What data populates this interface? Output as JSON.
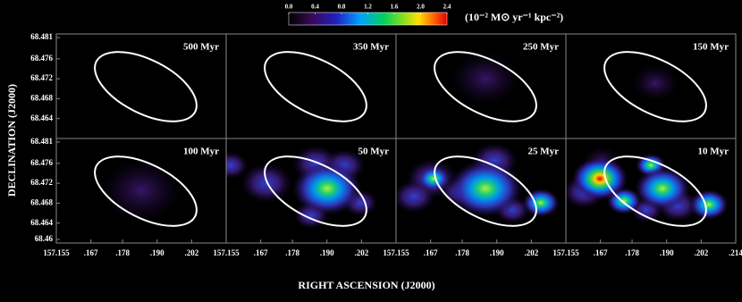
{
  "chart_data": {
    "type": "heatmap",
    "xlabel": "RIGHT ASCENSION (J2000)",
    "ylabel": "DECLINATION (J2000)",
    "colorbar": {
      "label": "(10⁻² M⊙  yr⁻¹ kpc⁻²)",
      "clim": [
        0,
        2.4
      ],
      "ticks": [
        {
          "value": 0,
          "label": "0.0"
        },
        0.4,
        0.8,
        1.2,
        1.6,
        {
          "value": 2,
          "label": "2.0"
        },
        2.4
      ]
    },
    "xlim": [
      157.155,
      157.214
    ],
    "ylim": [
      68.46,
      68.481
    ],
    "panels": [
      {
        "label": "500 Myr"
      },
      {
        "label": "350 Myr"
      },
      {
        "label": "250 Myr"
      },
      {
        "label": "150 Myr"
      },
      {
        "label": "100 Myr"
      },
      {
        "label": "50 Myr"
      },
      {
        "label": "25 Myr"
      },
      {
        "label": "10 Myr"
      }
    ],
    "yticks": [
      [
        68.481,
        68.476,
        68.472,
        68.468,
        68.464
      ],
      [
        68.481,
        68.476,
        68.472,
        68.468,
        68.464,
        68.46
      ]
    ],
    "xticks": [
      [
        157.155,
        {
          "value": 157.167,
          "label": ".167"
        },
        {
          "value": 157.178,
          "label": ".178"
        },
        {
          "value": 157.19,
          "label": ".190"
        },
        {
          "value": 157.202,
          "label": ".202"
        }
      ],
      [
        157.155,
        {
          "value": 157.167,
          "label": ".167"
        },
        {
          "value": 157.178,
          "label": ".178"
        },
        {
          "value": 157.19,
          "label": ".190"
        },
        {
          "value": 157.202,
          "label": ".202"
        }
      ],
      [
        157.155,
        {
          "value": 157.167,
          "label": ".167"
        },
        {
          "value": 157.178,
          "label": ".178"
        },
        {
          "value": 157.19,
          "label": ".190"
        },
        {
          "value": 157.202,
          "label": ".202"
        }
      ],
      [
        157.155,
        {
          "value": 157.167,
          "label": ".167"
        },
        {
          "value": 157.178,
          "label": ".178"
        },
        {
          "value": 157.19,
          "label": ".190"
        },
        {
          "value": 157.202,
          "label": ".202"
        },
        {
          "value": 157.214,
          "label": ".214"
        }
      ]
    ]
  }
}
